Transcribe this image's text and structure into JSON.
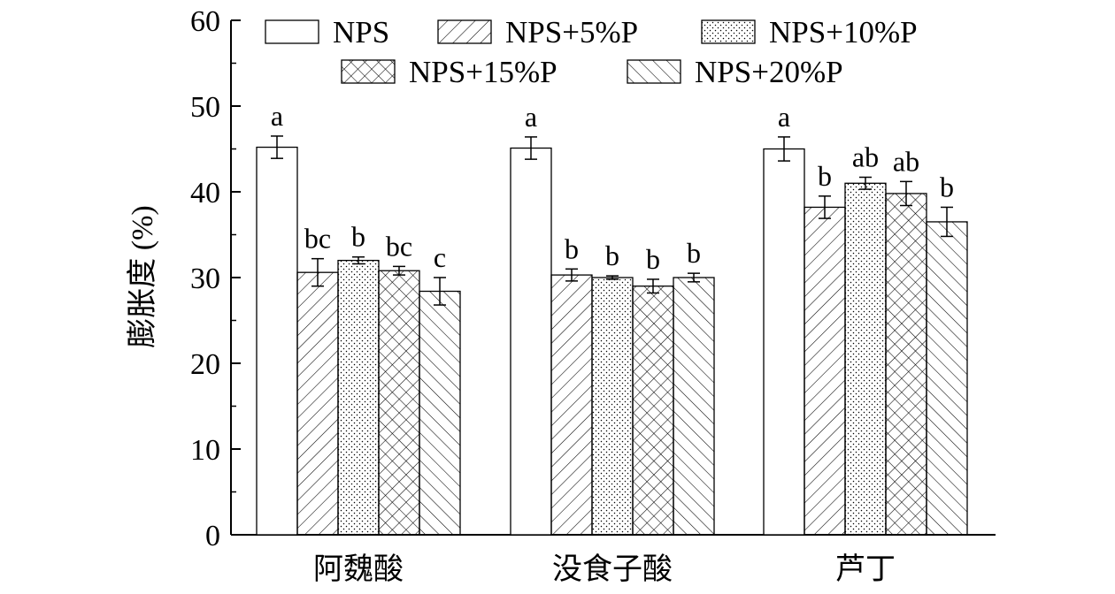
{
  "chart_data": {
    "type": "bar",
    "title": "",
    "xlabel": "",
    "ylabel": "膨胀度 (%)",
    "ylim": [
      0,
      60
    ],
    "yticks": [
      0,
      10,
      20,
      30,
      40,
      50,
      60
    ],
    "grid": false,
    "legend_position": "top",
    "categories": [
      "阿魏酸",
      "没食子酸",
      "芦丁"
    ],
    "series": [
      {
        "name": "NPS",
        "pattern": "none",
        "values": [
          45.2,
          45.1,
          45.0
        ],
        "errors": [
          1.3,
          1.3,
          1.4
        ],
        "labels": [
          "a",
          "a",
          "a"
        ]
      },
      {
        "name": "NPS+5%P",
        "pattern": "forward-diagonal",
        "values": [
          30.6,
          30.3,
          38.2
        ],
        "errors": [
          1.6,
          0.7,
          1.3
        ],
        "labels": [
          "bc",
          "b",
          "b"
        ]
      },
      {
        "name": "NPS+10%P",
        "pattern": "dots",
        "values": [
          32.0,
          30.0,
          41.0
        ],
        "errors": [
          0.4,
          0.2,
          0.7
        ],
        "labels": [
          "b",
          "b",
          "ab"
        ]
      },
      {
        "name": "NPS+15%P",
        "pattern": "crosshatch",
        "values": [
          30.8,
          29.0,
          39.8
        ],
        "errors": [
          0.5,
          0.8,
          1.4
        ],
        "labels": [
          "bc",
          "b",
          "ab"
        ]
      },
      {
        "name": "NPS+20%P",
        "pattern": "back-diagonal",
        "values": [
          28.4,
          30.0,
          36.5
        ],
        "errors": [
          1.6,
          0.5,
          1.7
        ],
        "labels": [
          "c",
          "b",
          "b"
        ]
      }
    ]
  }
}
